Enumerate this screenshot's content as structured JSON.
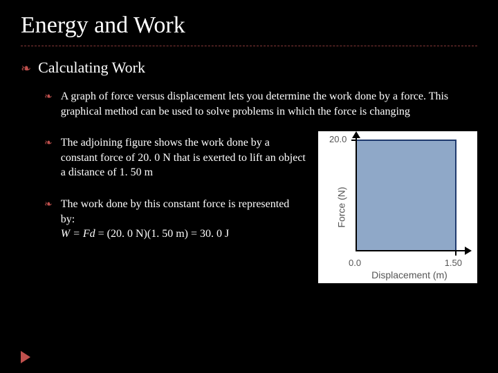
{
  "title": "Energy and Work",
  "subtitle": "Calculating Work",
  "bullets": {
    "b1": "A graph of force versus displacement lets you determine the work done by a force. This graphical method can be used to solve problems in which the force is changing",
    "b2": "The adjoining figure shows the work done by a constant force of 20. 0 N that is exerted to lift an object a distance of 1. 50 m",
    "b3_l1": "The work done by this constant force is represented by:",
    "b3_l2_prefix": "W = Fd",
    "b3_l2_rest": " = (20. 0 N)(1. 50 m) = 30. 0 J"
  },
  "chart": {
    "type": "area",
    "ylabel": "Force (N)",
    "xlabel": "Displacement (m)",
    "y_tick_label": "20.0",
    "x_tick_label": "1.50",
    "origin_label": "0.0",
    "bg_color": "#ffffff",
    "fill_color": "#8fa8c8",
    "border_color": "#1f3a6e",
    "axis_color": "#000000",
    "label_color": "#555555",
    "ylim": [
      0,
      20
    ],
    "xlim": [
      0,
      1.5
    ],
    "label_fontsize": 14,
    "tick_fontsize": 13
  },
  "colors": {
    "accent": "#c0504d",
    "background": "#000000",
    "text": "#ffffff"
  }
}
